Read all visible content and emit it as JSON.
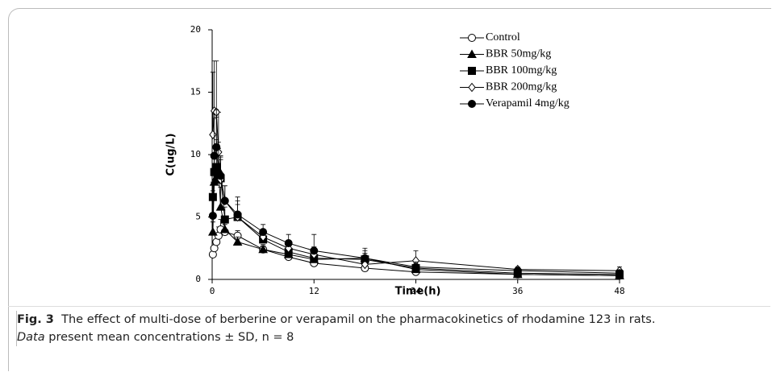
{
  "chart_data": {
    "type": "line",
    "xlabel": "Time(h)",
    "ylabel": "C(ug/L)",
    "x": [
      0.083,
      0.25,
      0.5,
      0.75,
      1,
      1.5,
      3,
      6,
      9,
      12,
      18,
      24,
      36,
      48
    ],
    "xlim": [
      0,
      48
    ],
    "xticks": [
      0,
      12,
      24,
      36,
      48
    ],
    "ylim": [
      0,
      20
    ],
    "yticks": [
      0,
      5,
      10,
      15,
      20
    ],
    "legend": "upper right",
    "series": [
      {
        "name": "Control",
        "color": "#000000",
        "marker": "circle-open",
        "values": [
          2.0,
          2.5,
          3.0,
          3.5,
          4.0,
          3.8,
          3.5,
          2.4,
          1.8,
          1.3,
          0.9,
          0.6,
          0.4,
          0.3
        ],
        "errors": [
          0.4,
          0.5,
          0.6,
          0.7,
          0.8,
          0.6,
          0.4,
          0.3,
          0.3,
          0.3,
          0.2,
          0.2,
          0.1,
          0.1
        ]
      },
      {
        "name": "BBR 50mg/kg",
        "color": "#000000",
        "marker": "triangle",
        "values": [
          3.8,
          7.8,
          8.2,
          8.8,
          5.8,
          4.0,
          3.0,
          2.4,
          2.0,
          1.6,
          1.7,
          0.8,
          0.4,
          0.3
        ],
        "errors": [
          0.8,
          2.0,
          3.0,
          2.2,
          1.6,
          0.8,
          0.4,
          0.4,
          0.4,
          0.4,
          0.6,
          0.3,
          0.2,
          0.2
        ]
      },
      {
        "name": "BBR 100mg/kg",
        "color": "#000000",
        "marker": "square",
        "values": [
          6.6,
          8.6,
          9.0,
          8.0,
          8.1,
          4.8,
          5.0,
          3.2,
          2.2,
          1.7,
          1.6,
          0.9,
          0.5,
          0.4
        ],
        "errors": [
          1.2,
          3.0,
          4.0,
          2.5,
          1.5,
          1.0,
          1.3,
          0.6,
          0.5,
          0.5,
          0.5,
          0.3,
          0.2,
          0.2
        ]
      },
      {
        "name": "BBR 200mg/kg",
        "color": "#000000",
        "marker": "diamond-open",
        "values": [
          11.6,
          13.5,
          13.4,
          10.2,
          8.0,
          6.3,
          5.0,
          3.4,
          2.5,
          2.0,
          1.2,
          1.5,
          0.8,
          0.7
        ],
        "errors": [
          5.0,
          4.0,
          4.1,
          3.2,
          1.8,
          1.2,
          1.0,
          0.6,
          0.6,
          0.6,
          0.7,
          0.8,
          0.2,
          0.3
        ]
      },
      {
        "name": "Verapamil 4mg/kg",
        "color": "#000000",
        "marker": "circle",
        "values": [
          5.1,
          9.9,
          10.6,
          8.5,
          8.3,
          6.3,
          5.2,
          3.8,
          2.9,
          2.3,
          1.7,
          1.0,
          0.7,
          0.5
        ],
        "errors": [
          2.0,
          3.0,
          3.0,
          2.0,
          1.6,
          1.2,
          1.4,
          0.6,
          0.7,
          1.3,
          0.8,
          0.4,
          0.2,
          0.2
        ]
      }
    ]
  },
  "caption": {
    "label": "Fig. 3",
    "text": "The effect of multi-dose of berberine or verapamil on the pharmacokinetics of rhodamine 123 in rats.",
    "italic": "Data",
    "rest": "present mean concentrations ± SD, n = 8"
  }
}
